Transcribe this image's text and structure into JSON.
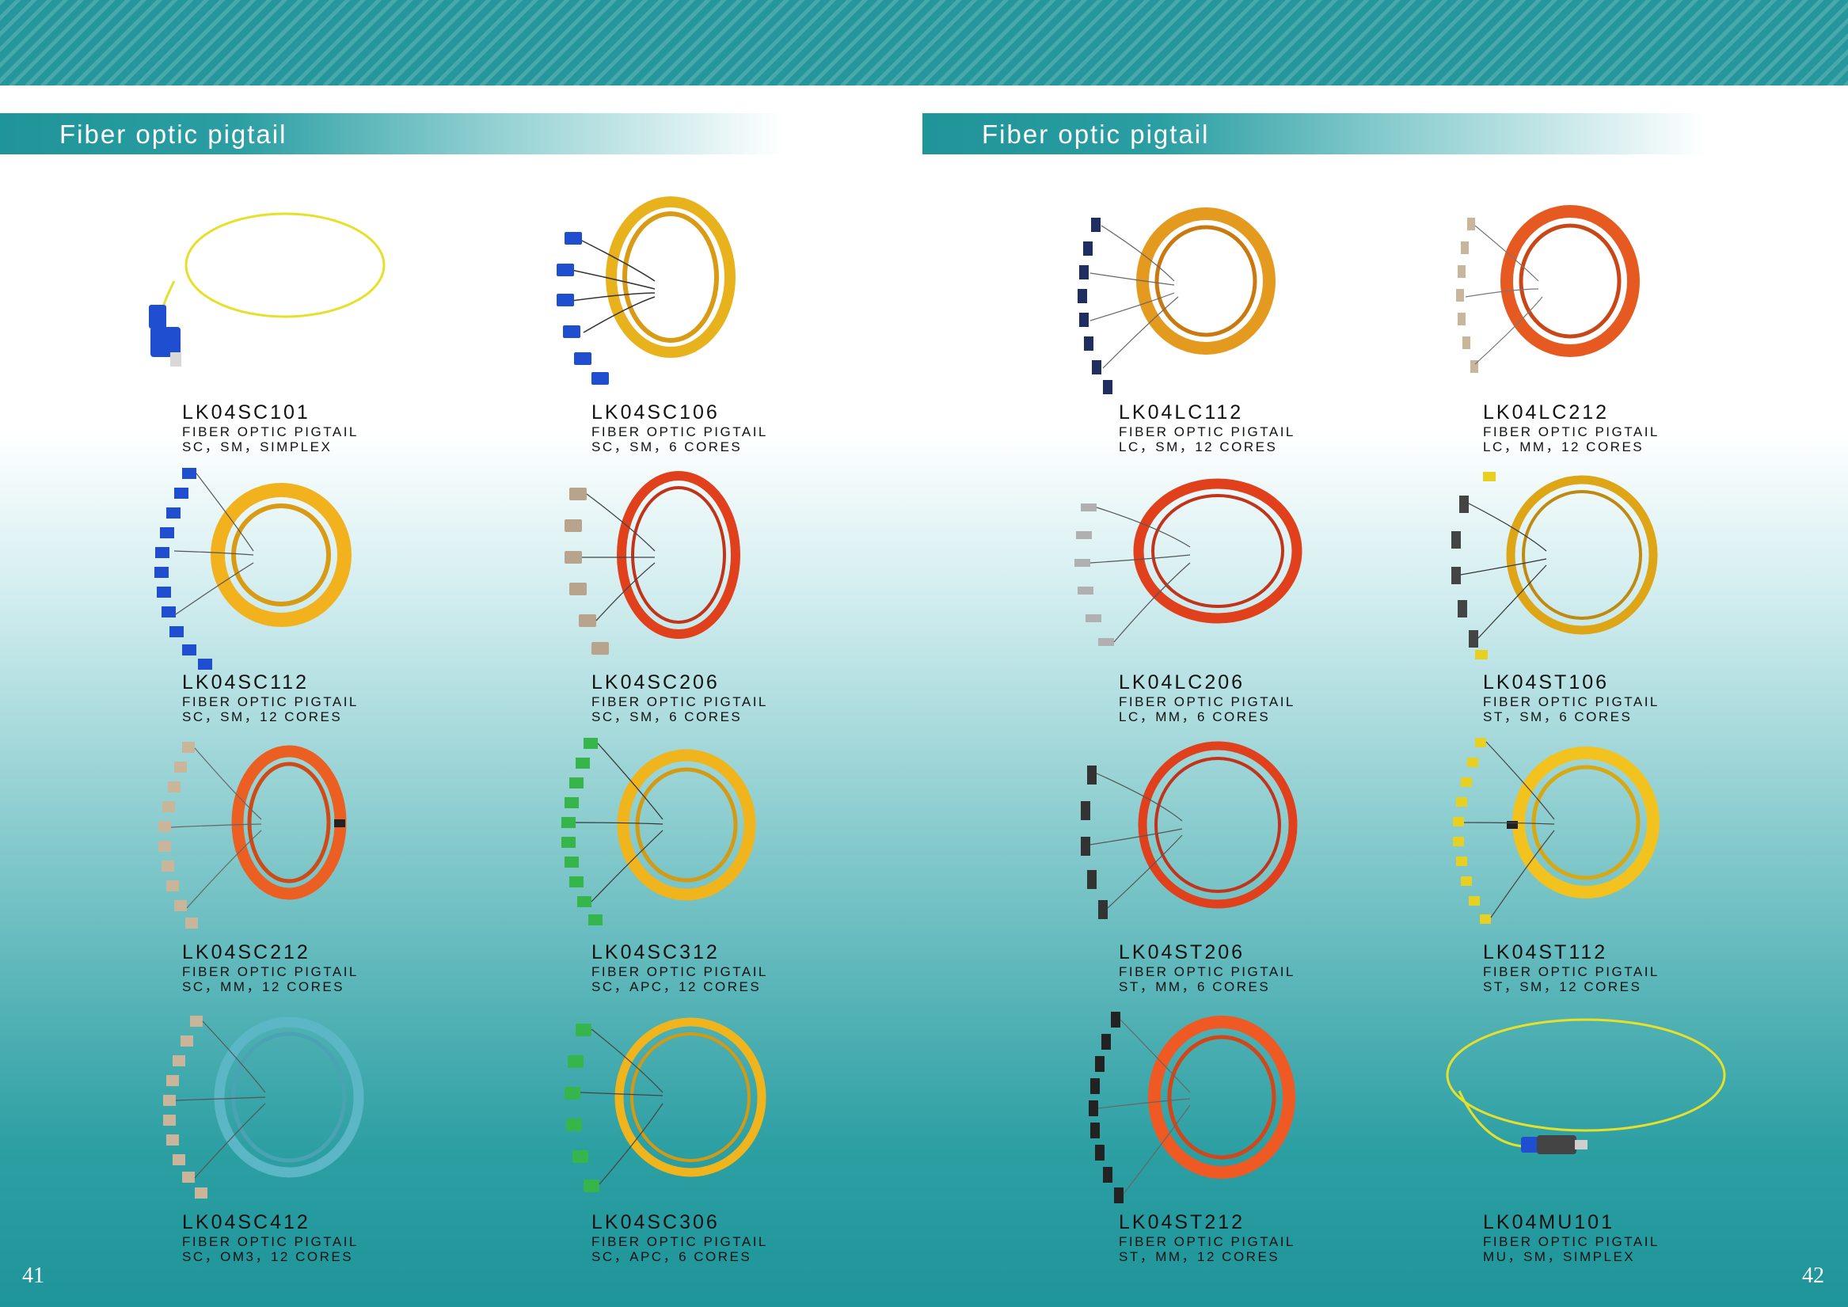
{
  "header": {
    "left_title": "Fiber optic pigtail",
    "right_title": "Fiber optic pigtail"
  },
  "colors": {
    "teal": "#25979c",
    "blue_connector": "#1f4fd0",
    "beige_connector": "#c8b59a",
    "green_connector": "#36b54a",
    "dark_connector": "#2a2a2a",
    "yellow_cable": "#e8b21c",
    "orange_cable": "#e65a22",
    "aqua_cable": "#5bb6c6"
  },
  "products": [
    {
      "code": "LK04SC101",
      "line1": "FIBER OPTIC PIGTAIL",
      "line2": "SC，SM，SIMPLEX"
    },
    {
      "code": "LK04SC106",
      "line1": "FIBER OPTIC PIGTAIL",
      "line2": "SC，SM，6 CORES"
    },
    {
      "code": "LK04LC112",
      "line1": "FIBER OPTIC PIGTAIL",
      "line2": "LC，SM，12 CORES"
    },
    {
      "code": "LK04LC212",
      "line1": "FIBER OPTIC PIGTAIL",
      "line2": "LC，MM，12 CORES"
    },
    {
      "code": "LK04SC112",
      "line1": "FIBER OPTIC PIGTAIL",
      "line2": "SC，SM，12 CORES"
    },
    {
      "code": "LK04SC206",
      "line1": "FIBER OPTIC PIGTAIL",
      "line2": "SC，SM，6 CORES"
    },
    {
      "code": "LK04LC206",
      "line1": "FIBER OPTIC PIGTAIL",
      "line2": "LC，MM，6 CORES"
    },
    {
      "code": "LK04ST106",
      "line1": "FIBER OPTIC PIGTAIL",
      "line2": "ST，SM，6 CORES"
    },
    {
      "code": "LK04SC212",
      "line1": "FIBER OPTIC PIGTAIL",
      "line2": "SC，MM，12 CORES"
    },
    {
      "code": "LK04SC312",
      "line1": "FIBER OPTIC PIGTAIL",
      "line2": "SC，APC，12 CORES"
    },
    {
      "code": "LK04ST206",
      "line1": "FIBER OPTIC PIGTAIL",
      "line2": "ST，MM，6 CORES"
    },
    {
      "code": "LK04ST112",
      "line1": "FIBER OPTIC PIGTAIL",
      "line2": "ST，SM，12 CORES"
    },
    {
      "code": "LK04SC412",
      "line1": "FIBER OPTIC PIGTAIL",
      "line2": "SC，OM3，12 CORES"
    },
    {
      "code": "LK04SC306",
      "line1": "FIBER OPTIC PIGTAIL",
      "line2": "SC，APC，6 CORES"
    },
    {
      "code": "LK04ST212",
      "line1": "FIBER OPTIC PIGTAIL",
      "line2": "ST，MM，12 CORES"
    },
    {
      "code": "LK04MU101",
      "line1": "FIBER OPTIC PIGTAIL",
      "line2": "MU，SM，SIMPLEX"
    }
  ],
  "pages": {
    "left": "41",
    "right": "42"
  }
}
